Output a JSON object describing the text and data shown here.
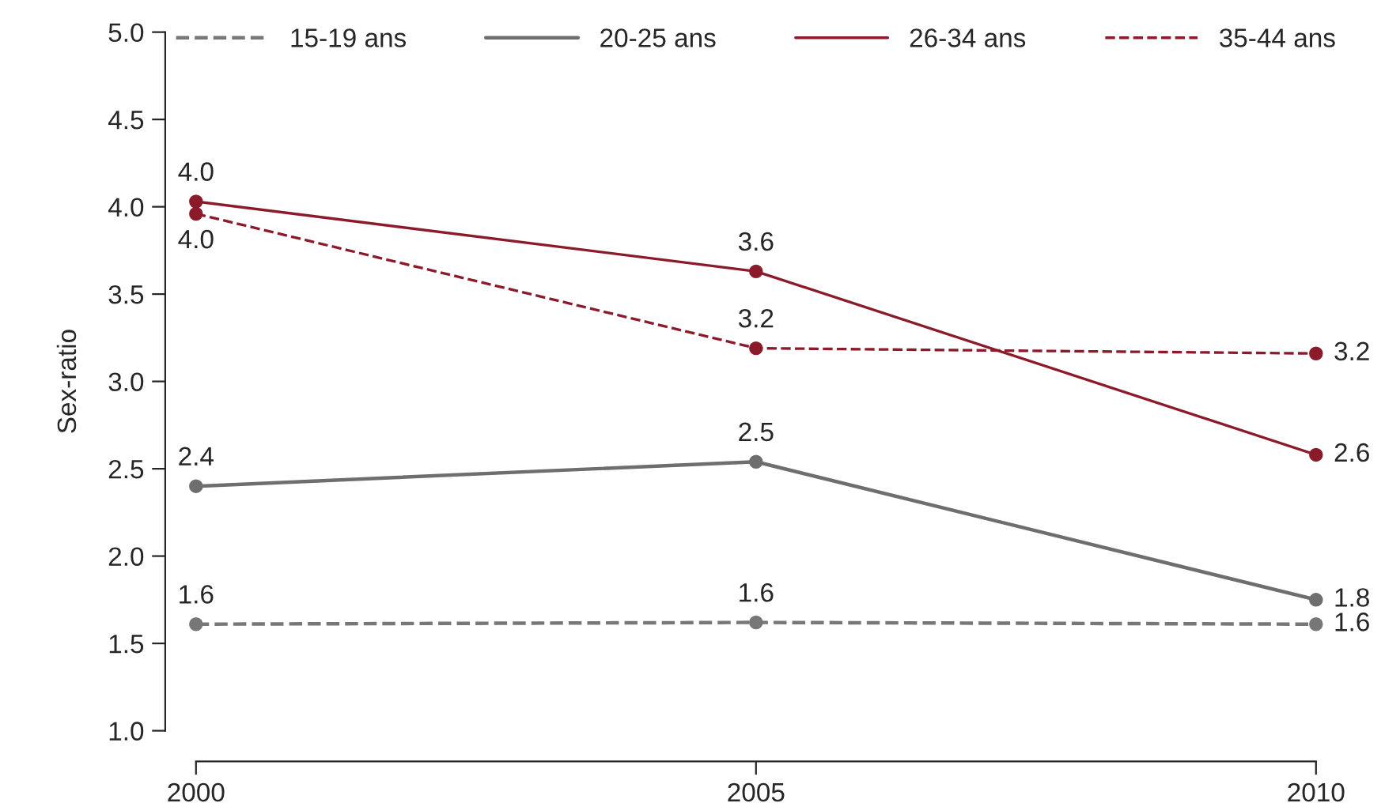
{
  "chart_data": {
    "type": "line",
    "ylabel": "Sex-ratio",
    "x": [
      2000,
      2005,
      2010
    ],
    "xlim": [
      2000,
      2010
    ],
    "xticks": [
      2000,
      2005,
      2010
    ],
    "ylim": [
      1.0,
      5.0
    ],
    "yticks": [
      {
        "value": 1.0,
        "label": "1.0"
      },
      {
        "value": 1.5,
        "label": "1.5"
      },
      {
        "value": 2.0,
        "label": "2.0"
      },
      {
        "value": 2.5,
        "label": "2.5"
      },
      {
        "value": 3.0,
        "label": "3.0"
      },
      {
        "value": 3.5,
        "label": "3.5"
      },
      {
        "value": 4.0,
        "label": "4.0"
      },
      {
        "value": 4.5,
        "label": "4.5"
      },
      {
        "value": 5.0,
        "label": "5.0"
      }
    ],
    "grid": false,
    "legend": "top",
    "marker": "circle",
    "series": [
      {
        "name": "15-19 ans",
        "color": "#777777",
        "line_style": "dashed",
        "values": [
          1.61,
          1.62,
          1.61
        ],
        "value_labels": [
          "1.6",
          "1.6",
          "1.6"
        ]
      },
      {
        "name": "20-25 ans",
        "color": "#6e6e6e",
        "line_style": "solid",
        "values": [
          2.4,
          2.54,
          1.75
        ],
        "value_labels": [
          "2.4",
          "2.5",
          "1.8"
        ]
      },
      {
        "name": "26-34 ans",
        "color": "#8b1a2b",
        "line_style": "solid",
        "values": [
          4.03,
          3.63,
          2.58
        ],
        "value_labels": [
          "4.0",
          "3.6",
          "2.6"
        ]
      },
      {
        "name": "35-44 ans",
        "color": "#8b1a2b",
        "line_style": "dashed",
        "values": [
          3.96,
          3.19,
          3.16
        ],
        "value_labels": [
          "4.0",
          "3.2",
          "3.2"
        ]
      }
    ]
  }
}
